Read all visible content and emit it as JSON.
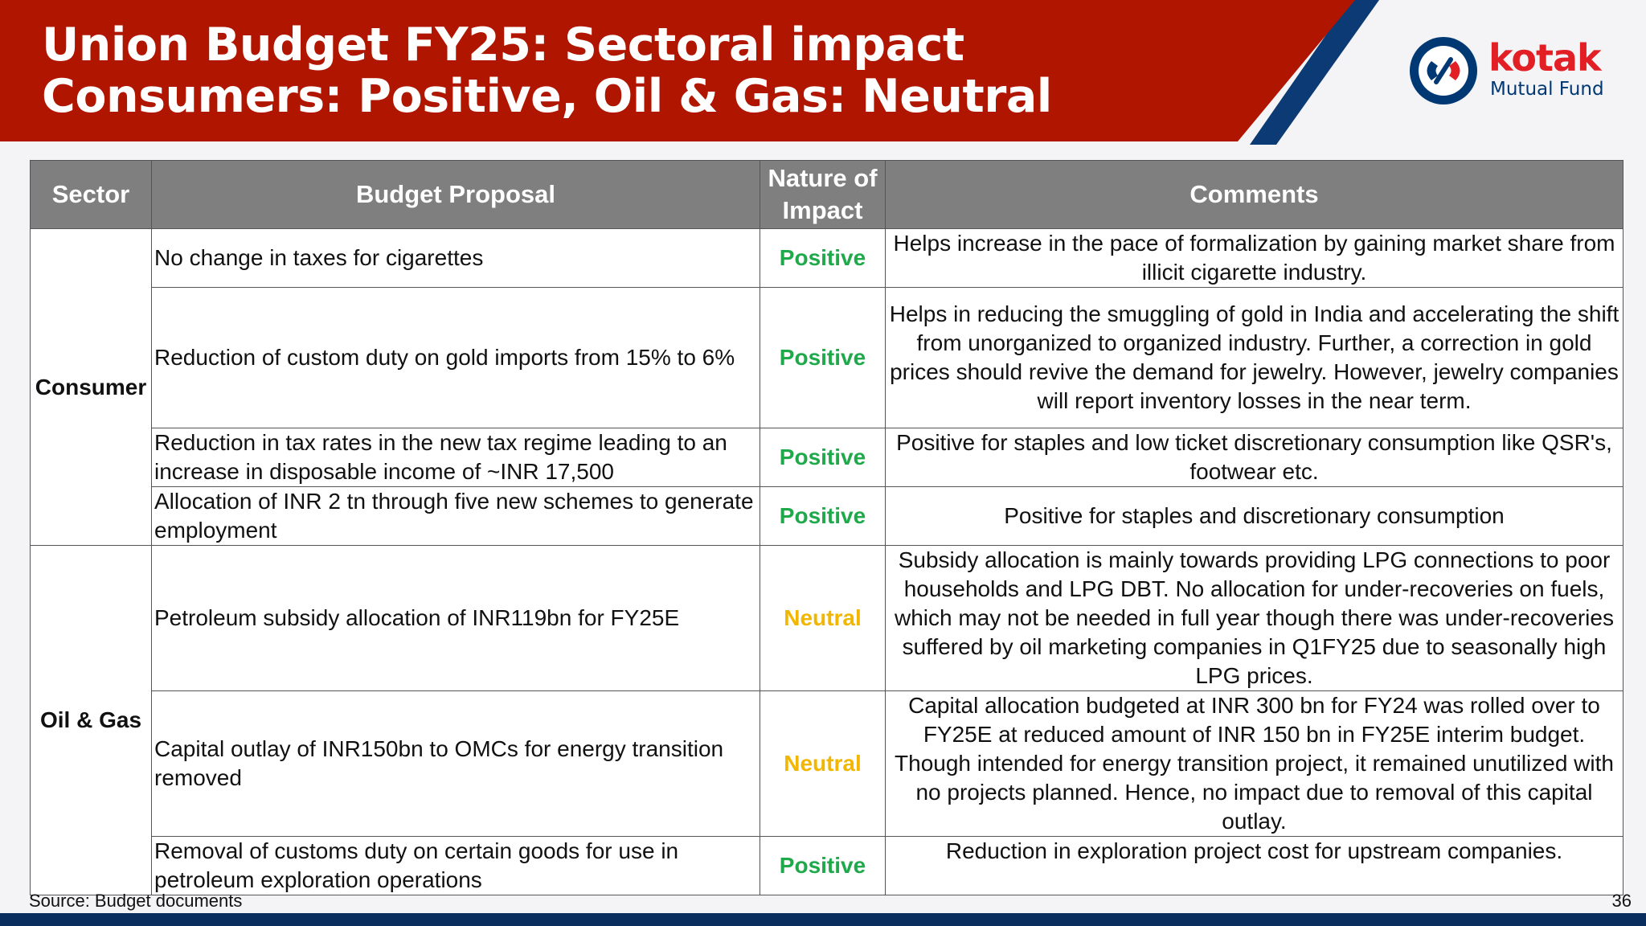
{
  "header": {
    "title_line1": "Union Budget FY25: Sectoral impact",
    "title_line2": "Consumers: Positive, Oil & Gas: Neutral",
    "colors": {
      "banner": "#b01500",
      "accent": "#0b3a75"
    }
  },
  "logo": {
    "word": "kotak",
    "sub": "Mutual Fund",
    "icon": "kotak-logo-icon"
  },
  "table": {
    "headers": [
      "Sector",
      "Budget Proposal",
      "Nature of Impact",
      "Comments"
    ],
    "groups": [
      {
        "sector": "Consumer",
        "rows": [
          {
            "proposal": "No change in taxes for cigarettes",
            "impact": "Positive",
            "comment": "Helps increase in the pace of formalization by gaining market share from illicit cigarette industry."
          },
          {
            "proposal": "Reduction of custom duty on gold imports from 15% to 6%",
            "impact": "Positive",
            "comment": "Helps in reducing the smuggling of gold in India and accelerating the shift from unorganized to organized industry. Further, a correction in gold prices should revive the demand for jewelry. However, jewelry companies will report inventory losses in the near term."
          },
          {
            "proposal": "Reduction in tax rates in the new tax regime leading to an increase in disposable income of ~INR 17,500",
            "impact": "Positive",
            "comment": "Positive for staples and low ticket discretionary consumption like QSR's, footwear etc."
          },
          {
            "proposal": "Allocation of INR 2 tn through five new schemes to generate employment",
            "impact": "Positive",
            "comment": "Positive for staples and discretionary consumption"
          }
        ]
      },
      {
        "sector": "Oil & Gas",
        "rows": [
          {
            "proposal": "Petroleum subsidy allocation of INR119bn for FY25E",
            "impact": "Neutral",
            "comment": "Subsidy allocation is mainly towards providing LPG connections to poor households and LPG DBT. No allocation for under-recoveries on fuels, which may not be needed in full year though there was under-recoveries suffered by oil marketing companies in Q1FY25 due to seasonally high LPG prices."
          },
          {
            "proposal": "Capital outlay of INR150bn to OMCs for energy transition removed",
            "impact": "Neutral",
            "comment": "Capital allocation budgeted at INR 300 bn for FY24 was rolled over to FY25E at reduced amount of INR 150 bn in FY25E interim budget. Though intended for energy transition project, it remained unutilized with no projects planned. Hence, no impact due to removal of this capital outlay."
          },
          {
            "proposal": "Removal of customs duty on certain goods for use in petroleum exploration operations",
            "impact": "Positive",
            "comment": "Reduction in exploration project cost for upstream companies."
          }
        ]
      }
    ],
    "impact_colors": {
      "Positive": "#1fa94a",
      "Neutral": "#f2b600"
    }
  },
  "footer": {
    "source": "Source: Budget documents",
    "page": "36"
  }
}
